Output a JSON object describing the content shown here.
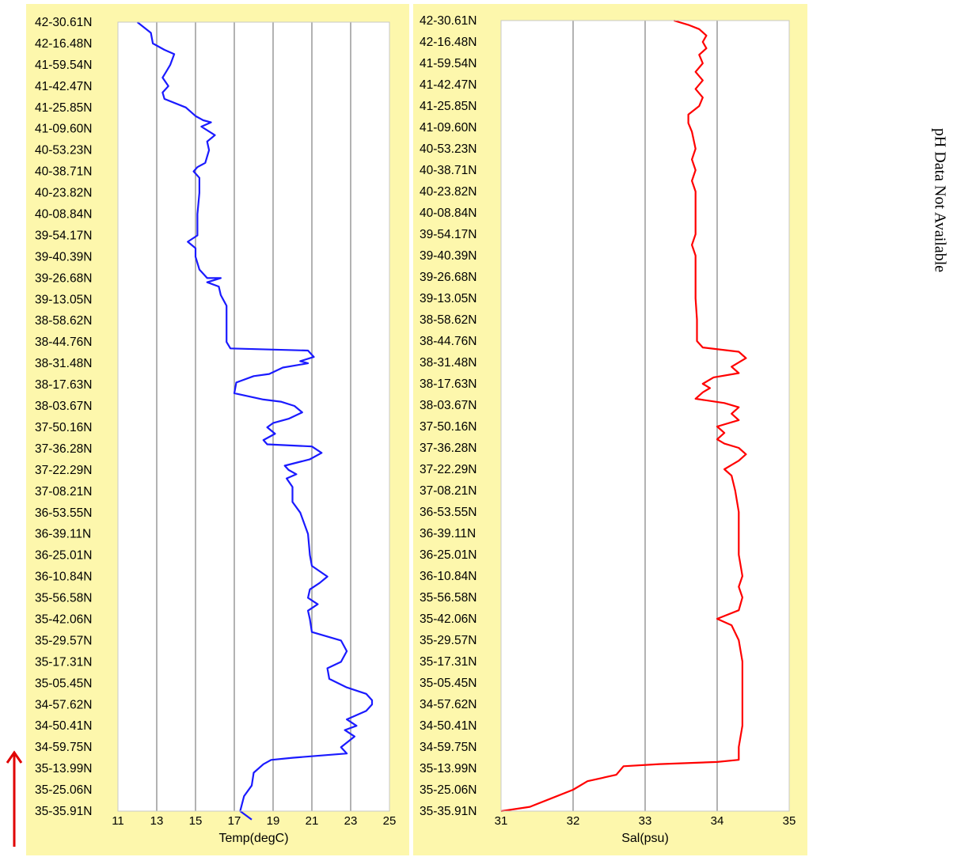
{
  "side_note": "pH Data Not Available",
  "colors": {
    "background": "#fdf7ac",
    "plot_area": "#ffffff",
    "temp_line": "#1a1aff",
    "sal_line": "#ff0000",
    "arrow": "#e00000",
    "grid": "#808080"
  },
  "chart_data": [
    {
      "type": "line",
      "orientation": "vertical-profile",
      "xlabel": "Temp(degC)",
      "xlim": [
        11,
        25
      ],
      "xticks": [
        11,
        13,
        15,
        17,
        19,
        21,
        23,
        25
      ],
      "grid": true,
      "y_categories": [
        "42-30.61N",
        "42-16.48N",
        "41-59.54N",
        "41-42.47N",
        "41-25.85N",
        "41-09.60N",
        "40-53.23N",
        "40-38.71N",
        "40-23.82N",
        "40-08.84N",
        "39-54.17N",
        "39-40.39N",
        "39-26.68N",
        "39-13.05N",
        "38-58.62N",
        "38-44.76N",
        "38-31.48N",
        "38-17.63N",
        "38-03.67N",
        "37-50.16N",
        "37-36.28N",
        "37-22.29N",
        "37-08.21N",
        "36-53.55N",
        "36-39.11N",
        "36-25.01N",
        "36-10.84N",
        "35-56.58N",
        "35-42.06N",
        "35-29.57N",
        "35-17.31N",
        "35-05.45N",
        "34-57.62N",
        "34-50.41N",
        "34-59.75N",
        "35-13.99N",
        "35-25.06N",
        "35-35.91N"
      ],
      "points": [
        [
          12.0,
          0
        ],
        [
          12.7,
          0.5
        ],
        [
          12.8,
          1
        ],
        [
          13.4,
          1.3
        ],
        [
          13.9,
          1.5
        ],
        [
          13.7,
          2
        ],
        [
          13.5,
          2.3
        ],
        [
          13.3,
          2.6
        ],
        [
          13.6,
          3
        ],
        [
          13.3,
          3.3
        ],
        [
          13.4,
          3.6
        ],
        [
          14.5,
          4
        ],
        [
          15.0,
          4.4
        ],
        [
          15.4,
          4.6
        ],
        [
          15.8,
          4.7
        ],
        [
          15.3,
          4.9
        ],
        [
          16.0,
          5.3
        ],
        [
          15.6,
          5.6
        ],
        [
          15.7,
          6
        ],
        [
          15.5,
          6.6
        ],
        [
          15.1,
          6.8
        ],
        [
          14.9,
          7
        ],
        [
          15.2,
          7.3
        ],
        [
          15.2,
          8
        ],
        [
          15.1,
          9
        ],
        [
          15.1,
          10
        ],
        [
          14.6,
          10.3
        ],
        [
          15.0,
          10.6
        ],
        [
          15.0,
          11
        ],
        [
          15.2,
          11.6
        ],
        [
          15.6,
          12
        ],
        [
          16.3,
          12
        ],
        [
          15.6,
          12.2
        ],
        [
          16.2,
          12.4
        ],
        [
          16.3,
          12.8
        ],
        [
          16.6,
          13.3
        ],
        [
          16.6,
          14
        ],
        [
          16.6,
          15
        ],
        [
          16.8,
          15.3
        ],
        [
          20.8,
          15.4
        ],
        [
          21.1,
          15.7
        ],
        [
          20.4,
          15.9
        ],
        [
          20.8,
          16
        ],
        [
          19.5,
          16.2
        ],
        [
          18.8,
          16.5
        ],
        [
          18.0,
          16.6
        ],
        [
          17.1,
          16.9
        ],
        [
          17.0,
          17.4
        ],
        [
          18.5,
          17.7
        ],
        [
          19.4,
          17.8
        ],
        [
          20.1,
          18
        ],
        [
          20.5,
          18.3
        ],
        [
          19.8,
          18.6
        ],
        [
          19.0,
          18.8
        ],
        [
          18.7,
          19
        ],
        [
          19.1,
          19.3
        ],
        [
          18.5,
          19.6
        ],
        [
          18.7,
          19.8
        ],
        [
          21.0,
          19.9
        ],
        [
          21.5,
          20.2
        ],
        [
          20.9,
          20.5
        ],
        [
          19.6,
          20.8
        ],
        [
          19.8,
          21
        ],
        [
          20.2,
          21.2
        ],
        [
          19.7,
          21.4
        ],
        [
          20.0,
          21.8
        ],
        [
          20.0,
          22.5
        ],
        [
          20.4,
          23
        ],
        [
          20.8,
          24
        ],
        [
          20.9,
          25
        ],
        [
          21.0,
          25.5
        ],
        [
          21.8,
          26
        ],
        [
          21.4,
          26.3
        ],
        [
          20.9,
          26.6
        ],
        [
          20.8,
          27
        ],
        [
          21.3,
          27.3
        ],
        [
          20.8,
          27.6
        ],
        [
          20.9,
          28
        ],
        [
          21.0,
          28.6
        ],
        [
          22.5,
          29
        ],
        [
          22.8,
          29.5
        ],
        [
          22.5,
          30
        ],
        [
          21.8,
          30.3
        ],
        [
          21.9,
          30.8
        ],
        [
          22.8,
          31.2
        ],
        [
          23.8,
          31.5
        ],
        [
          24.1,
          31.8
        ],
        [
          24.1,
          32
        ],
        [
          23.8,
          32.3
        ],
        [
          22.8,
          32.7
        ],
        [
          23.3,
          33
        ],
        [
          22.7,
          33.2
        ],
        [
          23.2,
          33.5
        ],
        [
          22.5,
          34
        ],
        [
          22.8,
          34.3
        ],
        [
          20.0,
          34.5
        ],
        [
          18.9,
          34.6
        ],
        [
          18.5,
          34.8
        ],
        [
          18.0,
          35.2
        ],
        [
          17.9,
          35.8
        ],
        [
          17.5,
          36.3
        ],
        [
          17.3,
          37
        ],
        [
          17.9,
          37.4
        ]
      ]
    },
    {
      "type": "line",
      "orientation": "vertical-profile",
      "xlabel": "Sal(psu)",
      "xlim": [
        31,
        35
      ],
      "xticks": [
        31,
        32,
        33,
        34,
        35
      ],
      "grid": true,
      "y_categories": [
        "42-30.61N",
        "42-16.48N",
        "41-59.54N",
        "41-42.47N",
        "41-25.85N",
        "41-09.60N",
        "40-53.23N",
        "40-38.71N",
        "40-23.82N",
        "40-08.84N",
        "39-54.17N",
        "39-40.39N",
        "39-26.68N",
        "39-13.05N",
        "38-58.62N",
        "38-44.76N",
        "38-31.48N",
        "38-17.63N",
        "38-03.67N",
        "37-50.16N",
        "37-36.28N",
        "37-22.29N",
        "37-08.21N",
        "36-53.55N",
        "36-39.11N",
        "36-25.01N",
        "36-10.84N",
        "35-56.58N",
        "35-42.06N",
        "35-29.57N",
        "35-17.31N",
        "35-05.45N",
        "34-57.62N",
        "34-50.41N",
        "34-59.75N",
        "35-13.99N",
        "35-25.06N",
        "35-35.91N"
      ],
      "points": [
        [
          33.4,
          0
        ],
        [
          33.6,
          0.2
        ],
        [
          33.75,
          0.4
        ],
        [
          33.85,
          0.7
        ],
        [
          33.8,
          1
        ],
        [
          33.85,
          1.3
        ],
        [
          33.75,
          1.6
        ],
        [
          33.8,
          2
        ],
        [
          33.7,
          2.4
        ],
        [
          33.8,
          2.8
        ],
        [
          33.7,
          3.2
        ],
        [
          33.8,
          3.6
        ],
        [
          33.75,
          4
        ],
        [
          33.6,
          4.4
        ],
        [
          33.6,
          4.8
        ],
        [
          33.65,
          5.2
        ],
        [
          33.7,
          6
        ],
        [
          33.65,
          6.5
        ],
        [
          33.7,
          7
        ],
        [
          33.65,
          7.5
        ],
        [
          33.7,
          8
        ],
        [
          33.7,
          9
        ],
        [
          33.7,
          10
        ],
        [
          33.65,
          10.5
        ],
        [
          33.7,
          11
        ],
        [
          33.7,
          12
        ],
        [
          33.7,
          13
        ],
        [
          33.72,
          14
        ],
        [
          33.72,
          15
        ],
        [
          33.8,
          15.3
        ],
        [
          34.3,
          15.5
        ],
        [
          34.4,
          15.8
        ],
        [
          34.2,
          16.2
        ],
        [
          34.3,
          16.5
        ],
        [
          33.95,
          16.7
        ],
        [
          33.8,
          17
        ],
        [
          33.9,
          17.2
        ],
        [
          33.8,
          17.4
        ],
        [
          33.7,
          17.7
        ],
        [
          34.1,
          17.9
        ],
        [
          34.3,
          18.1
        ],
        [
          34.2,
          18.4
        ],
        [
          34.3,
          18.7
        ],
        [
          34.0,
          19
        ],
        [
          34.1,
          19.3
        ],
        [
          34.0,
          19.6
        ],
        [
          34.1,
          19.8
        ],
        [
          34.3,
          20
        ],
        [
          34.4,
          20.3
        ],
        [
          34.3,
          20.6
        ],
        [
          34.2,
          20.8
        ],
        [
          34.1,
          21
        ],
        [
          34.2,
          21.3
        ],
        [
          34.25,
          22
        ],
        [
          34.3,
          23
        ],
        [
          34.3,
          24
        ],
        [
          34.3,
          25
        ],
        [
          34.35,
          26
        ],
        [
          34.3,
          26.5
        ],
        [
          34.35,
          27
        ],
        [
          34.3,
          27.6
        ],
        [
          34.0,
          28
        ],
        [
          34.2,
          28.3
        ],
        [
          34.3,
          29
        ],
        [
          34.35,
          30
        ],
        [
          34.35,
          31
        ],
        [
          34.35,
          32
        ],
        [
          34.35,
          33
        ],
        [
          34.3,
          34
        ],
        [
          34.3,
          34.6
        ],
        [
          34.0,
          34.7
        ],
        [
          33.2,
          34.8
        ],
        [
          32.7,
          34.9
        ],
        [
          32.6,
          35.3
        ],
        [
          32.2,
          35.6
        ],
        [
          32.0,
          36
        ],
        [
          31.7,
          36.4
        ],
        [
          31.4,
          36.8
        ],
        [
          31.0,
          37
        ]
      ]
    }
  ]
}
